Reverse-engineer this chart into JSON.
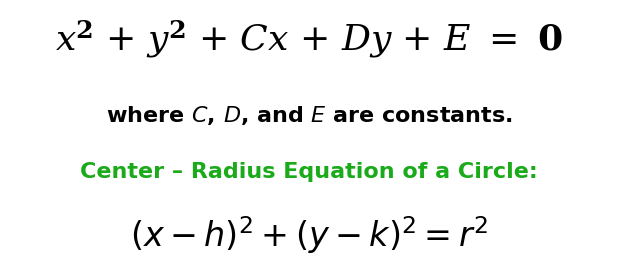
{
  "bg_color": "#ffffff",
  "line1_color": "#000000",
  "line2_color": "#000000",
  "line3_color": "#1aaa1a",
  "line4_color": "#000000",
  "line1_fontsize": 26,
  "line2_fontsize": 16,
  "line3_fontsize": 16,
  "line4_fontsize": 24,
  "fig_width": 6.18,
  "fig_height": 2.61,
  "dpi": 100
}
